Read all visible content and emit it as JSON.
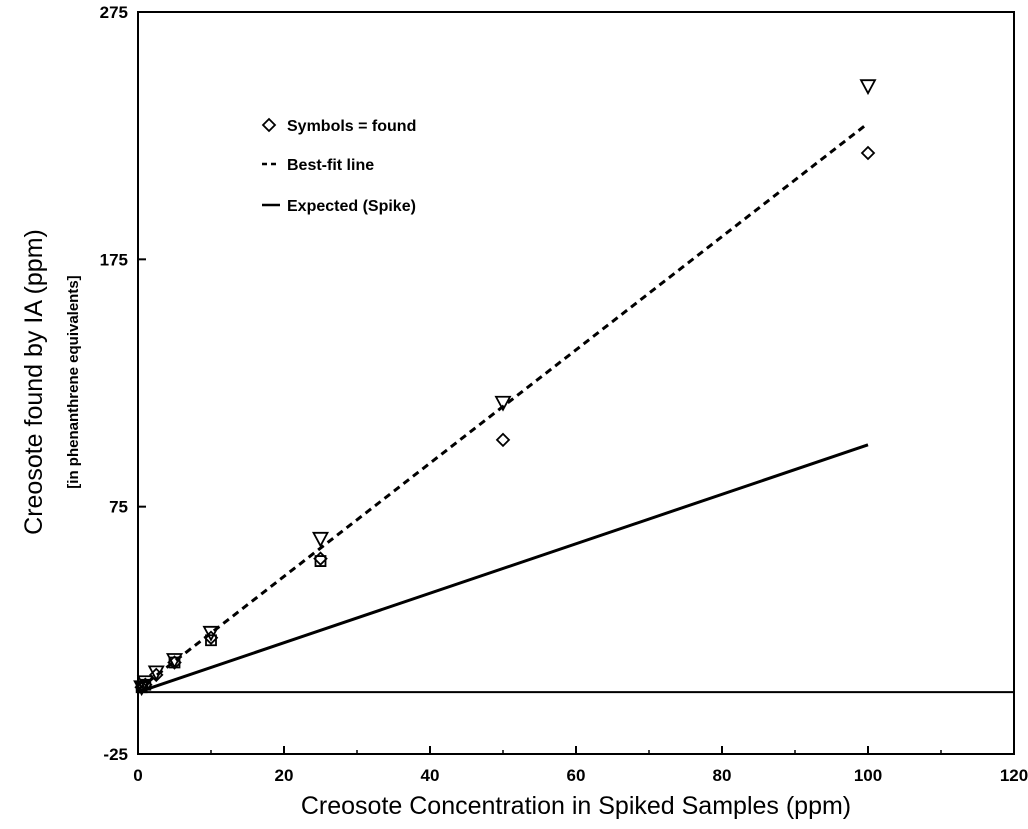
{
  "chart_data": {
    "type": "scatter",
    "title": "",
    "xlabel": "Creosote Concentration in Spiked Samples (ppm)",
    "ylabel": "Creosote found by IA (ppm)",
    "ylabel_sub": "[in phenanthrene equivalents]",
    "xlim": [
      0,
      120
    ],
    "ylim": [
      -25,
      275
    ],
    "xticks": [
      "0",
      "20",
      "40",
      "60",
      "80",
      "100",
      "120"
    ],
    "yticks": [
      "-25",
      "75",
      "175",
      "275"
    ],
    "grid": false,
    "legend_position": "top-left",
    "legend": [
      {
        "label": "Symbols = found",
        "marker": "diamond"
      },
      {
        "label": "Best-fit line",
        "style": "dashed"
      },
      {
        "label": "Expected (Spike)",
        "style": "solid"
      }
    ],
    "series": [
      {
        "marker": "diamond",
        "x": [
          0.5,
          1,
          2.5,
          5,
          10,
          25,
          50,
          100
        ],
        "y": [
          2,
          3,
          7,
          12,
          22,
          54,
          102,
          218
        ]
      },
      {
        "marker": "triangle-down",
        "x": [
          0.5,
          1,
          2.5,
          5,
          10,
          25,
          50,
          100
        ],
        "y": [
          2,
          4,
          8,
          13,
          24,
          62,
          117,
          245
        ]
      },
      {
        "marker": "square",
        "x": [
          0.5,
          1,
          5,
          10,
          25
        ],
        "y": [
          2,
          3,
          12,
          21,
          53
        ]
      }
    ],
    "lines": [
      {
        "kind": "best-fit",
        "style": "dashed",
        "x": [
          0,
          100
        ],
        "y": [
          1,
          230
        ]
      },
      {
        "kind": "expected",
        "style": "solid",
        "x": [
          0,
          100
        ],
        "y": [
          0,
          100
        ]
      },
      {
        "kind": "baseline",
        "style": "solid",
        "x": [
          0,
          120
        ],
        "y": [
          0,
          0
        ]
      }
    ]
  }
}
